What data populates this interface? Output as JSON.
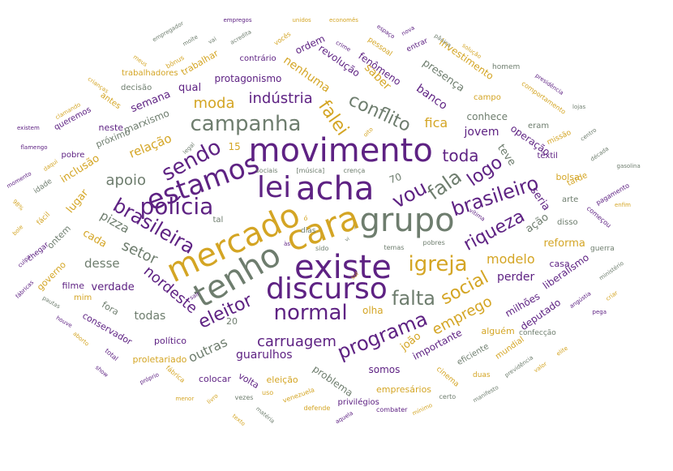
{
  "colors": {
    "purple": "#5e2283",
    "gold": "#d4a524",
    "gray": "#6e7d6e",
    "background": "#ffffff"
  },
  "words": [
    {
      "text": "movimento",
      "color": "purple",
      "size": 40
    },
    {
      "text": "lei",
      "color": "purple",
      "size": 36
    },
    {
      "text": "acha",
      "color": "purple",
      "size": 40
    },
    {
      "text": "mercado",
      "color": "gold",
      "size": 40
    },
    {
      "text": "cara",
      "color": "gold",
      "size": 42
    },
    {
      "text": "grupo",
      "color": "gray",
      "size": 40
    },
    {
      "text": "existe",
      "color": "purple",
      "size": 40
    },
    {
      "text": "tenho",
      "color": "gray",
      "size": 40
    },
    {
      "text": "discurso",
      "color": "purple",
      "size": 36
    },
    {
      "text": "estamos",
      "color": "purple",
      "size": 34
    },
    {
      "text": "polícia",
      "color": "purple",
      "size": 28
    },
    {
      "text": "sendo",
      "color": "purple",
      "size": 26
    },
    {
      "text": "campanha",
      "color": "gray",
      "size": 26
    },
    {
      "text": "brasileira",
      "color": "purple",
      "size": 24
    },
    {
      "text": "brasileiro",
      "color": "purple",
      "size": 24
    },
    {
      "text": "conflito",
      "color": "gray",
      "size": 22
    },
    {
      "text": "vou",
      "color": "purple",
      "size": 24
    },
    {
      "text": "fala",
      "color": "gray",
      "size": 24
    },
    {
      "text": "logo",
      "color": "purple",
      "size": 22
    },
    {
      "text": "igreja",
      "color": "gold",
      "size": 26
    },
    {
      "text": "normal",
      "color": "purple",
      "size": 26
    },
    {
      "text": "falta",
      "color": "gray",
      "size": 24
    },
    {
      "text": "programa",
      "color": "purple",
      "size": 24
    },
    {
      "text": "riqueza",
      "color": "purple",
      "size": 22
    },
    {
      "text": "social",
      "color": "gold",
      "size": 22
    },
    {
      "text": "eleitor",
      "color": "purple",
      "size": 22
    },
    {
      "text": "falei",
      "color": "gold",
      "size": 22
    },
    {
      "text": "toda",
      "color": "purple",
      "size": 20
    },
    {
      "text": "indústria",
      "color": "purple",
      "size": 18
    },
    {
      "text": "moda",
      "color": "gold",
      "size": 18
    },
    {
      "text": "carruagem",
      "color": "purple",
      "size": 18
    },
    {
      "text": "setor",
      "color": "gray",
      "size": 18
    },
    {
      "text": "apoio",
      "color": "gray",
      "size": 18
    },
    {
      "text": "emprego",
      "color": "gold",
      "size": 18
    },
    {
      "text": "nordeste",
      "color": "purple",
      "size": 18
    },
    {
      "text": "modelo",
      "color": "gold",
      "size": 16
    },
    {
      "text": "fica",
      "color": "gold",
      "size": 16
    },
    {
      "text": "outras",
      "color": "gray",
      "size": 16
    },
    {
      "text": "pizza",
      "color": "gray",
      "size": 15
    },
    {
      "text": "desse",
      "color": "gray",
      "size": 15
    },
    {
      "text": "relação",
      "color": "gold",
      "size": 15
    },
    {
      "text": "jovem",
      "color": "purple",
      "size": 14
    },
    {
      "text": "perder",
      "color": "purple",
      "size": 14
    },
    {
      "text": "todas",
      "color": "gray",
      "size": 14
    },
    {
      "text": "guarulhos",
      "color": "purple",
      "size": 14
    },
    {
      "text": "banco",
      "color": "purple",
      "size": 14
    },
    {
      "text": "saber",
      "color": "gold",
      "size": 14
    },
    {
      "text": "nenhuma",
      "color": "gold",
      "size": 14
    },
    {
      "text": "protagonismo",
      "color": "purple",
      "size": 12
    },
    {
      "text": "semana",
      "color": "purple",
      "size": 13
    },
    {
      "text": "qual",
      "color": "purple",
      "size": 13
    },
    {
      "text": "marxismo",
      "color": "gray",
      "size": 12
    },
    {
      "text": "presença",
      "color": "gray",
      "size": 13
    },
    {
      "text": "conhece",
      "color": "gray",
      "size": 12
    },
    {
      "text": "teve",
      "color": "gray",
      "size": 13
    },
    {
      "text": "operação",
      "color": "purple",
      "size": 12
    },
    {
      "text": "seria",
      "color": "purple",
      "size": 13
    },
    {
      "text": "ação",
      "color": "gray",
      "size": 13
    },
    {
      "text": "reforma",
      "color": "gold",
      "size": 13
    },
    {
      "text": "lugar",
      "color": "gold",
      "size": 13
    },
    {
      "text": "cada",
      "color": "gold",
      "size": 13
    },
    {
      "text": "verdade",
      "color": "purple",
      "size": 13
    },
    {
      "text": "inclusão",
      "color": "gold",
      "size": 13
    },
    {
      "text": "fenômeno",
      "color": "purple",
      "size": 12
    },
    {
      "text": "revolução",
      "color": "purple",
      "size": 12
    },
    {
      "text": "ordem",
      "color": "purple",
      "size": 12
    },
    {
      "text": "investimento",
      "color": "gold",
      "size": 12
    },
    {
      "text": "importante",
      "color": "purple",
      "size": 12
    },
    {
      "text": "joão",
      "color": "gold",
      "size": 13
    },
    {
      "text": "somos",
      "color": "purple",
      "size": 12
    },
    {
      "text": "problema",
      "color": "gray",
      "size": 12
    },
    {
      "text": "milhões",
      "color": "purple",
      "size": 12
    },
    {
      "text": "deputado",
      "color": "purple",
      "size": 12
    },
    {
      "text": "liberalismo",
      "color": "purple",
      "size": 12
    },
    {
      "text": "casa",
      "color": "purple",
      "size": 11
    },
    {
      "text": "bolsa",
      "color": "gold",
      "size": 11
    },
    {
      "text": "próximo",
      "color": "gray",
      "size": 11
    },
    {
      "text": "neste",
      "color": "purple",
      "size": 11
    },
    {
      "text": "ontem",
      "color": "gray",
      "size": 11
    },
    {
      "text": "governo",
      "color": "gold",
      "size": 11
    },
    {
      "text": "filme",
      "color": "purple",
      "size": 11
    },
    {
      "text": "fora",
      "color": "gray",
      "size": 11
    },
    {
      "text": "conservador",
      "color": "purple",
      "size": 11
    },
    {
      "text": "proletariado",
      "color": "gold",
      "size": 11
    },
    {
      "text": "político",
      "color": "purple",
      "size": 11
    },
    {
      "text": "colocar",
      "color": "purple",
      "size": 11
    },
    {
      "text": "volta",
      "color": "purple",
      "size": 11
    },
    {
      "text": "eleição",
      "color": "gold",
      "size": 11
    },
    {
      "text": "empresários",
      "color": "gold",
      "size": 11
    },
    {
      "text": "privilégios",
      "color": "purple",
      "size": 10
    },
    {
      "text": "olha",
      "color": "gold",
      "size": 12
    },
    {
      "text": "eficiente",
      "color": "gray",
      "size": 10
    },
    {
      "text": "alguém",
      "color": "gold",
      "size": 11
    },
    {
      "text": "mundial",
      "color": "gold",
      "size": 10
    },
    {
      "text": "contrário",
      "color": "purple",
      "size": 10
    },
    {
      "text": "trabalhar",
      "color": "gold",
      "size": 11
    },
    {
      "text": "trabalhadores",
      "color": "gold",
      "size": 10
    },
    {
      "text": "decisão",
      "color": "gray",
      "size": 10
    },
    {
      "text": "antes",
      "color": "gold",
      "size": 10
    },
    {
      "text": "queremos",
      "color": "purple",
      "size": 10
    },
    {
      "text": "pobre",
      "color": "purple",
      "size": 10
    },
    {
      "text": "idade",
      "color": "gray",
      "size": 9
    },
    {
      "text": "fácil",
      "color": "gold",
      "size": 9
    },
    {
      "text": "chegar",
      "color": "purple",
      "size": 9
    },
    {
      "text": "mim",
      "color": "gold",
      "size": 10
    },
    {
      "text": "eram",
      "color": "gray",
      "size": 10
    },
    {
      "text": "arte",
      "color": "gray",
      "size": 10
    },
    {
      "text": "disso",
      "color": "gray",
      "size": 10
    },
    {
      "text": "tarde",
      "color": "gold",
      "size": 10
    },
    {
      "text": "têxtil",
      "color": "purple",
      "size": 10
    },
    {
      "text": "campo",
      "color": "gold",
      "size": 10
    },
    {
      "text": "homem",
      "color": "gray",
      "size": 9
    },
    {
      "text": "pessoal",
      "color": "gold",
      "size": 9
    },
    {
      "text": "entrar",
      "color": "purple",
      "size": 9
    },
    {
      "text": "missão",
      "color": "gold",
      "size": 9
    },
    {
      "text": "comportamento",
      "color": "gold",
      "size": 8
    },
    {
      "text": "pagamento",
      "color": "purple",
      "size": 8
    },
    {
      "text": "começou",
      "color": "purple",
      "size": 8
    },
    {
      "text": "guerra",
      "color": "gray",
      "size": 9
    },
    {
      "text": "confecção",
      "color": "gray",
      "size": 9
    },
    {
      "text": "duas",
      "color": "gold",
      "size": 9
    },
    {
      "text": "cinema",
      "color": "gold",
      "size": 9
    },
    {
      "text": "certo",
      "color": "gray",
      "size": 8
    },
    {
      "text": "combater",
      "color": "purple",
      "size": 8
    },
    {
      "text": "venezuela",
      "color": "gold",
      "size": 8
    },
    {
      "text": "defende",
      "color": "gold",
      "size": 8
    },
    {
      "text": "uso",
      "color": "gold",
      "size": 8
    },
    {
      "text": "vezes",
      "color": "gray",
      "size": 8
    },
    {
      "text": "fábrica",
      "color": "gold",
      "size": 8
    },
    {
      "text": "total",
      "color": "purple",
      "size": 8
    },
    {
      "text": "show",
      "color": "purple",
      "size": 7
    },
    {
      "text": "próprio",
      "color": "purple",
      "size": 7
    },
    {
      "text": "menor",
      "color": "gold",
      "size": 7
    },
    {
      "text": "livro",
      "color": "gold",
      "size": 7
    },
    {
      "text": "texto",
      "color": "gold",
      "size": 7
    },
    {
      "text": "matéria",
      "color": "gray",
      "size": 7
    },
    {
      "text": "aquela",
      "color": "purple",
      "size": 7
    },
    {
      "text": "mínimo",
      "color": "gold",
      "size": 7
    },
    {
      "text": "manifesto",
      "color": "gray",
      "size": 7
    },
    {
      "text": "previdência",
      "color": "gray",
      "size": 7
    },
    {
      "text": "valor",
      "color": "gold",
      "size": 7
    },
    {
      "text": "elite",
      "color": "gold",
      "size": 7
    },
    {
      "text": "pega",
      "color": "purple",
      "size": 7
    },
    {
      "text": "angústia",
      "color": "purple",
      "size": 7
    },
    {
      "text": "criar",
      "color": "gold",
      "size": 7
    },
    {
      "text": "ministério",
      "color": "gray",
      "size": 7
    },
    {
      "text": "enfim",
      "color": "gold",
      "size": 7
    },
    {
      "text": "gasolina",
      "color": "gray",
      "size": 7
    },
    {
      "text": "década",
      "color": "gray",
      "size": 7
    },
    {
      "text": "centro",
      "color": "gray",
      "size": 7
    },
    {
      "text": "lojas",
      "color": "gray",
      "size": 7
    },
    {
      "text": "presidência",
      "color": "purple",
      "size": 7
    },
    {
      "text": "solução",
      "color": "gold",
      "size": 7
    },
    {
      "text": "pânico",
      "color": "gray",
      "size": 7
    },
    {
      "text": "nova",
      "color": "purple",
      "size": 7
    },
    {
      "text": "espaço",
      "color": "purple",
      "size": 7
    },
    {
      "text": "economês",
      "color": "gold",
      "size": 7
    },
    {
      "text": "unidos",
      "color": "gold",
      "size": 7
    },
    {
      "text": "empregos",
      "color": "purple",
      "size": 7
    },
    {
      "text": "vocês",
      "color": "gold",
      "size": 8
    },
    {
      "text": "crime",
      "color": "purple",
      "size": 7
    },
    {
      "text": "acredita",
      "color": "gray",
      "size": 7
    },
    {
      "text": "vai",
      "color": "gray",
      "size": 7
    },
    {
      "text": "moite",
      "color": "gray",
      "size": 7
    },
    {
      "text": "empregador",
      "color": "gray",
      "size": 7
    },
    {
      "text": "meus",
      "color": "gold",
      "size": 7
    },
    {
      "text": "bônus",
      "color": "gold",
      "size": 8
    },
    {
      "text": "crianças",
      "color": "gold",
      "size": 7
    },
    {
      "text": "clamando",
      "color": "gold",
      "size": 7
    },
    {
      "text": "existem",
      "color": "purple",
      "size": 7
    },
    {
      "text": "flamengo",
      "color": "purple",
      "size": 7
    },
    {
      "text": "daqui",
      "color": "gold",
      "size": 7
    },
    {
      "text": "momento",
      "color": "purple",
      "size": 7
    },
    {
      "text": "98%",
      "color": "gold",
      "size": 7
    },
    {
      "text": "bole",
      "color": "gold",
      "size": 7
    },
    {
      "text": "culpa",
      "color": "purple",
      "size": 7
    },
    {
      "text": "fábricas",
      "color": "purple",
      "size": 7
    },
    {
      "text": "pautas",
      "color": "gray",
      "size": 7
    },
    {
      "text": "houve",
      "color": "purple",
      "size": 7
    },
    {
      "text": "aborto",
      "color": "gold",
      "size": 7
    },
    {
      "text": "sair",
      "color": "purple",
      "size": 7
    },
    {
      "text": "vítima",
      "color": "purple",
      "size": 7
    },
    {
      "text": "pobres",
      "color": "gray",
      "size": 8
    },
    {
      "text": "sul",
      "color": "gold",
      "size": 7
    },
    {
      "text": "vi",
      "color": "gray",
      "size": 6
    },
    {
      "text": "r",
      "color": "gray",
      "size": 6
    },
    {
      "text": "temas",
      "color": "gray",
      "size": 8
    },
    {
      "text": "sido",
      "color": "gray",
      "size": 8
    },
    {
      "text": "às",
      "color": "purple",
      "size": 7
    },
    {
      "text": "ó",
      "color": "gold",
      "size": 8
    },
    {
      "text": "dias",
      "color": "gray",
      "size": 9
    },
    {
      "text": "tal",
      "color": "gray",
      "size": 10
    },
    {
      "text": "legal",
      "color": "gray",
      "size": 7
    },
    {
      "text": "sociais",
      "color": "gray",
      "size": 8
    },
    {
      "text": "[música]",
      "color": "gray",
      "size": 8
    },
    {
      "text": "crença",
      "color": "gray",
      "size": 8
    },
    {
      "text": "15",
      "color": "gold",
      "size": 12
    },
    {
      "text": "70",
      "color": "gray",
      "size": 12
    },
    {
      "text": "20",
      "color": "gray",
      "size": 11
    },
    {
      "text": "oito",
      "color": "gold",
      "size": 7
    }
  ]
}
